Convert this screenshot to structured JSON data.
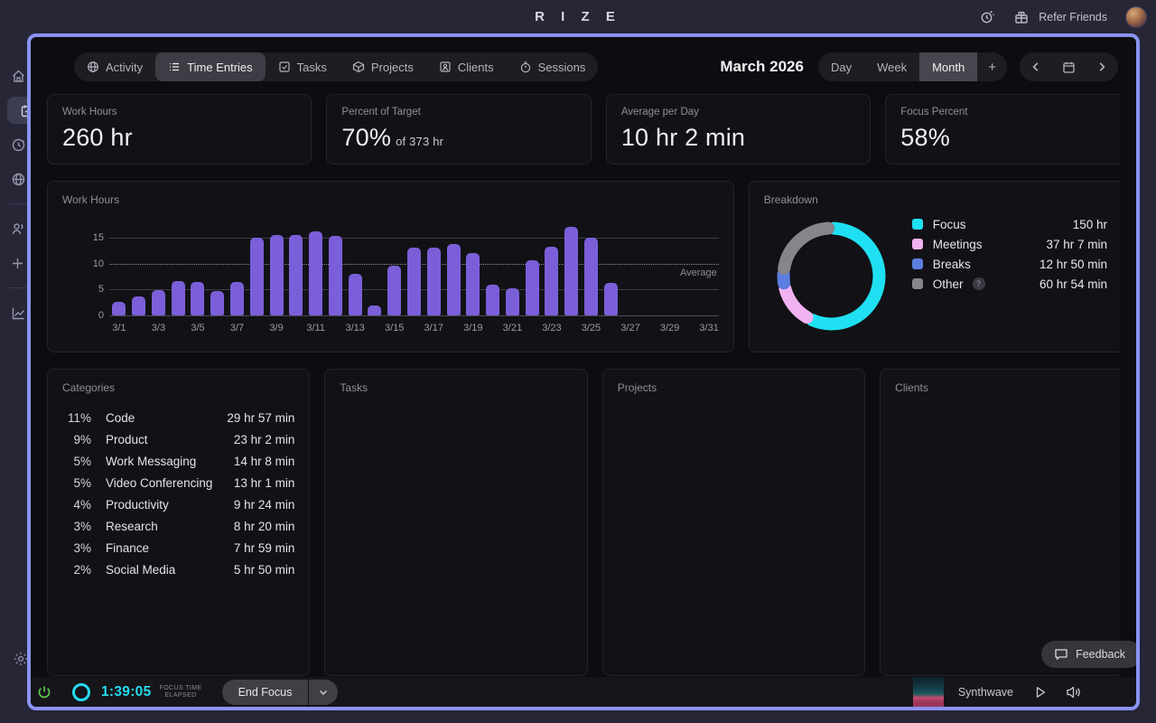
{
  "app": {
    "logo": "R I Z E",
    "refer_friends": "Refer Friends"
  },
  "tabs": [
    {
      "label": "Activity"
    },
    {
      "label": "Time Entries"
    },
    {
      "label": "Tasks"
    },
    {
      "label": "Projects"
    },
    {
      "label": "Clients"
    },
    {
      "label": "Sessions"
    }
  ],
  "selected_tab": "Time Entries",
  "period": {
    "title": "March 2026",
    "views": [
      {
        "label": "Day"
      },
      {
        "label": "Week"
      },
      {
        "label": "Month"
      }
    ],
    "selected_view": "Month",
    "add_label": "+"
  },
  "stats": {
    "cards": [
      {
        "label": "Work Hours",
        "value": "260 hr",
        "suffix": ""
      },
      {
        "label": "Percent of Target",
        "value": "70%",
        "suffix": "of 373 hr"
      },
      {
        "label": "Average per Day",
        "value": "10 hr 2 min",
        "suffix": ""
      },
      {
        "label": "Focus Percent",
        "value": "58%",
        "suffix": ""
      }
    ]
  },
  "chart_data": [
    {
      "type": "bar",
      "title": "Work Hours",
      "categories": [
        "3/1",
        "3/2",
        "3/3",
        "3/4",
        "3/5",
        "3/6",
        "3/7",
        "3/8",
        "3/9",
        "3/10",
        "3/11",
        "3/12",
        "3/13",
        "3/14",
        "3/15",
        "3/16",
        "3/17",
        "3/18",
        "3/19",
        "3/20",
        "3/21",
        "3/22",
        "3/23",
        "3/24",
        "3/25",
        "3/26",
        "3/27",
        "3/28",
        "3/29",
        "3/30",
        "3/31"
      ],
      "values": [
        2.6,
        3.6,
        4.9,
        6.7,
        6.4,
        4.7,
        6.5,
        15.0,
        15.6,
        15.5,
        16.2,
        15.4,
        8.1,
        1.9,
        9.6,
        13.1,
        13.2,
        13.9,
        12.0,
        6.0,
        5.2,
        10.6,
        13.3,
        17.1,
        15.1,
        6.3,
        0,
        0,
        0,
        0,
        0
      ],
      "xtick_labels": [
        "3/1",
        "3/3",
        "3/5",
        "3/7",
        "3/9",
        "3/11",
        "3/13",
        "3/15",
        "3/17",
        "3/19",
        "3/21",
        "3/23",
        "3/25",
        "3/27",
        "3/29",
        "3/31"
      ],
      "ylabel": "",
      "ylim": [
        0,
        17.5
      ],
      "yticks": [
        0,
        5,
        10,
        15
      ],
      "average_line": 10,
      "average_label": "Average",
      "bar_color": "#7b5fd9",
      "grid": "horizontal"
    },
    {
      "type": "donut",
      "title": "Breakdown",
      "segments": [
        {
          "label": "Focus",
          "value": "150 hr",
          "percent": 57.5,
          "color": "#1fe0f2",
          "help": false
        },
        {
          "label": "Meetings",
          "value": "37 hr 7 min",
          "percent": 14.2,
          "color": "#f0b2f0",
          "help": false
        },
        {
          "label": "Breaks",
          "value": "12 hr 50 min",
          "percent": 4.9,
          "color": "#5c7ee0",
          "help": false
        },
        {
          "label": "Other",
          "value": "60 hr 54 min",
          "percent": 23.4,
          "color": "#85858b",
          "help": true
        }
      ],
      "legend_position": "right"
    }
  ],
  "categories": {
    "title": "Categories",
    "rows": [
      {
        "percent": "11%",
        "name": "Code",
        "time": "29 hr 57 min"
      },
      {
        "percent": "9%",
        "name": "Product",
        "time": "23 hr 2 min"
      },
      {
        "percent": "5%",
        "name": "Work Messaging",
        "time": "14 hr 8 min"
      },
      {
        "percent": "5%",
        "name": "Video Conferencing",
        "time": "13 hr 1 min"
      },
      {
        "percent": "4%",
        "name": "Productivity",
        "time": "9 hr 24 min"
      },
      {
        "percent": "3%",
        "name": "Research",
        "time": "8 hr 20 min"
      },
      {
        "percent": "3%",
        "name": "Finance",
        "time": "7 hr 59 min"
      },
      {
        "percent": "2%",
        "name": "Social Media",
        "time": "5 hr 50 min"
      }
    ]
  },
  "panels": {
    "tasks_title": "Tasks",
    "projects_title": "Projects",
    "clients_title": "Clients"
  },
  "footer": {
    "timer": "1:39:05",
    "timer_caption_line1": "FOCUS TIME",
    "timer_caption_line2": "ELAPSED",
    "end_focus_label": "End Focus",
    "track_name": "Synthwave",
    "feedback_label": "Feedback"
  },
  "colors": {
    "accent_border": "#8b93f4",
    "bar": "#7b5fd9",
    "timer_cyan": "#25dbf0",
    "power_green": "#5ec24a",
    "focus": "#1fe0f2",
    "meetings": "#f0b2f0",
    "breaks": "#5c7ee0",
    "other": "#85858b"
  }
}
